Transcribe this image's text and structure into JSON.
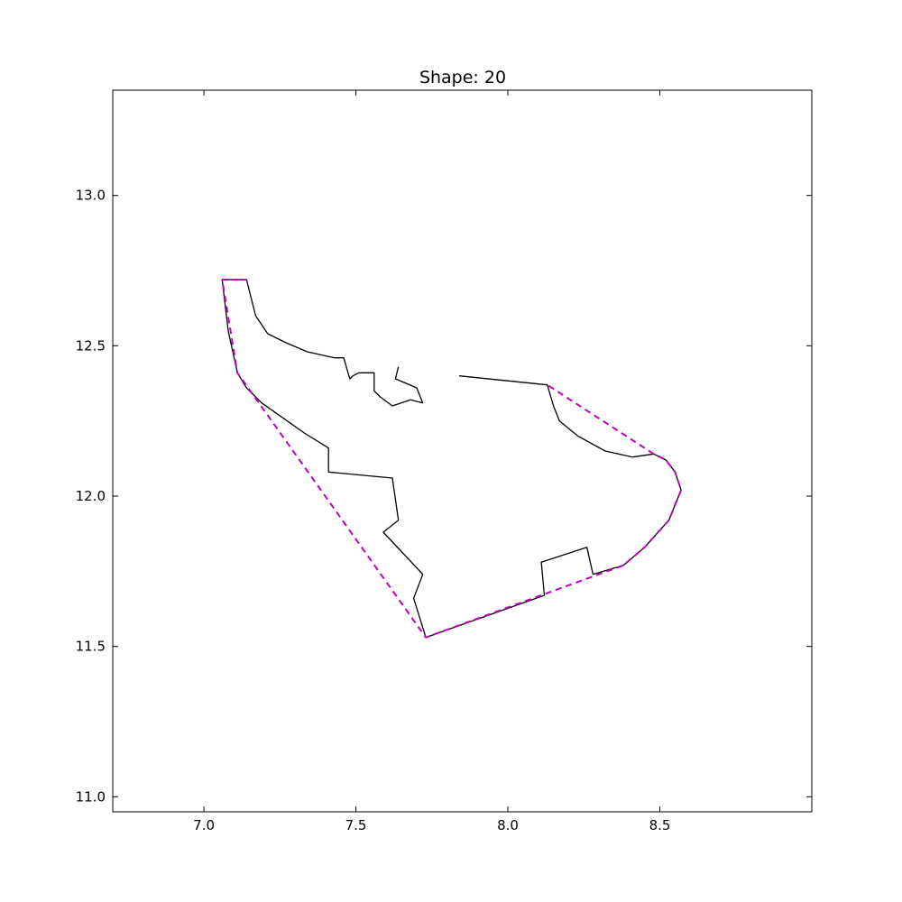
{
  "chart_data": {
    "type": "line",
    "title": "Shape: 20",
    "xlabel": "",
    "ylabel": "",
    "xlim": [
      6.7,
      9.0
    ],
    "ylim": [
      10.95,
      13.35
    ],
    "grid": false,
    "x_ticks": [
      {
        "value": 7.0,
        "label": "7.0"
      },
      {
        "value": 7.5,
        "label": "7.5"
      },
      {
        "value": 8.0,
        "label": "8.0"
      },
      {
        "value": 8.5,
        "label": "8.5"
      }
    ],
    "y_ticks": [
      {
        "value": 11.0,
        "label": "11.0"
      },
      {
        "value": 11.5,
        "label": "11.5"
      },
      {
        "value": 12.0,
        "label": "12.0"
      },
      {
        "value": 12.5,
        "label": "12.5"
      },
      {
        "value": 13.0,
        "label": "13.0"
      }
    ],
    "series": [
      {
        "style": "solid",
        "color": "#000000",
        "points": [
          [
            7.64,
            12.43
          ],
          [
            7.63,
            12.39
          ],
          [
            7.7,
            12.36
          ],
          [
            7.72,
            12.31
          ],
          [
            7.68,
            12.32
          ],
          [
            7.62,
            12.3
          ],
          [
            7.58,
            12.33
          ],
          [
            7.56,
            12.35
          ],
          [
            7.56,
            12.41
          ],
          [
            7.51,
            12.41
          ],
          [
            7.49,
            12.4
          ],
          [
            7.48,
            12.39
          ],
          [
            7.46,
            12.46
          ],
          [
            7.43,
            12.46
          ],
          [
            7.34,
            12.48
          ],
          [
            7.27,
            12.51
          ],
          [
            7.21,
            12.54
          ],
          [
            7.17,
            12.6
          ],
          [
            7.14,
            12.72
          ],
          [
            7.06,
            12.72
          ],
          [
            7.08,
            12.55
          ],
          [
            7.11,
            12.41
          ],
          [
            7.14,
            12.36
          ],
          [
            7.19,
            12.31
          ],
          [
            7.26,
            12.26
          ],
          [
            7.33,
            12.21
          ],
          [
            7.41,
            12.16
          ],
          [
            7.41,
            12.08
          ],
          [
            7.62,
            12.06
          ],
          [
            7.64,
            11.92
          ],
          [
            7.59,
            11.88
          ],
          [
            7.72,
            11.74
          ],
          [
            7.69,
            11.66
          ],
          [
            7.73,
            11.53
          ],
          [
            7.87,
            11.58
          ],
          [
            8.12,
            11.67
          ],
          [
            8.11,
            11.78
          ],
          [
            8.26,
            11.83
          ],
          [
            8.28,
            11.74
          ],
          [
            8.38,
            11.77
          ],
          [
            8.45,
            11.83
          ],
          [
            8.53,
            11.92
          ],
          [
            8.57,
            12.02
          ],
          [
            8.55,
            12.08
          ],
          [
            8.52,
            12.12
          ],
          [
            8.48,
            12.14
          ],
          [
            8.41,
            12.13
          ],
          [
            8.32,
            12.15
          ],
          [
            8.23,
            12.2
          ],
          [
            8.17,
            12.25
          ],
          [
            8.15,
            12.3
          ],
          [
            8.13,
            12.37
          ],
          [
            7.84,
            12.4
          ]
        ]
      },
      {
        "style": "dashed",
        "color": "#bf00bf",
        "points": [
          [
            7.06,
            12.72
          ],
          [
            7.14,
            12.72
          ],
          [
            7.06,
            12.72
          ],
          [
            7.11,
            12.41
          ],
          [
            7.73,
            11.53
          ],
          [
            8.38,
            11.77
          ],
          [
            8.45,
            11.83
          ],
          [
            8.53,
            11.92
          ],
          [
            8.57,
            12.02
          ],
          [
            8.55,
            12.08
          ],
          [
            8.52,
            12.12
          ],
          [
            8.48,
            12.14
          ],
          [
            8.13,
            12.37
          ]
        ]
      }
    ]
  }
}
